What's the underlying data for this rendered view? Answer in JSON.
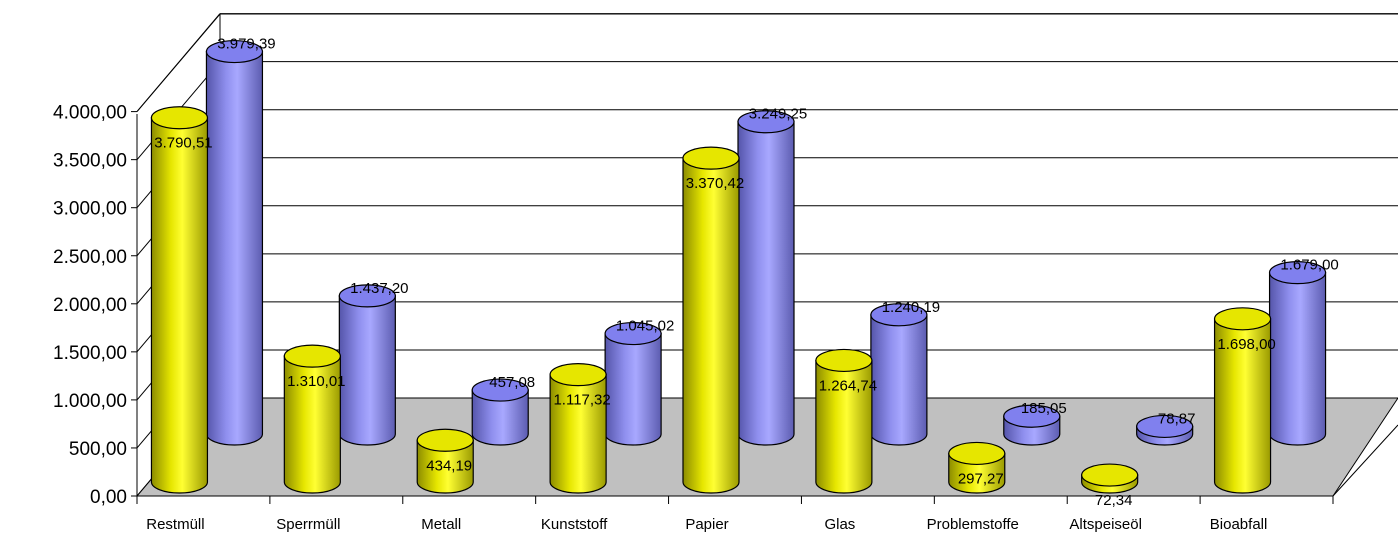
{
  "chart_data": {
    "type": "bar",
    "style": "3d-cylinder",
    "title": "",
    "xlabel": "",
    "ylabel": "",
    "ylim": [
      0,
      4000
    ],
    "y_ticks": [
      "0,00",
      "500,00",
      "1.000,00",
      "1.500,00",
      "2.000,00",
      "2.500,00",
      "3.000,00",
      "3.500,00",
      "4.000,00"
    ],
    "grid": true,
    "legend": "none",
    "categories": [
      "Restmüll",
      "Sperrmüll",
      "Metall",
      "Kunststoff",
      "Papier",
      "Glas",
      "Problemstoffe",
      "Altspeiseöl",
      "Bioabfall"
    ],
    "series": [
      {
        "color": "#ffff00",
        "values": [
          3790.51,
          1310.01,
          434.19,
          1117.32,
          3370.42,
          1264.74,
          297.27,
          72.34,
          1698.0
        ],
        "labels": [
          "3.790,51",
          "1.310,01",
          "434,19",
          "1.117,32",
          "3.370,42",
          "1.264,74",
          "297,27",
          "72,34",
          "1.698,00"
        ]
      },
      {
        "color": "#9999ff",
        "values": [
          3979.39,
          1437.2,
          457.08,
          1045.02,
          3249.25,
          1240.19,
          185.05,
          78.87,
          1679.0
        ],
        "labels": [
          "3.979,39",
          "1.437,20",
          "457,08",
          "1.045,02",
          "3.249,25",
          "1.240,19",
          "185,05",
          "78,87",
          "1.679,00"
        ]
      }
    ]
  }
}
